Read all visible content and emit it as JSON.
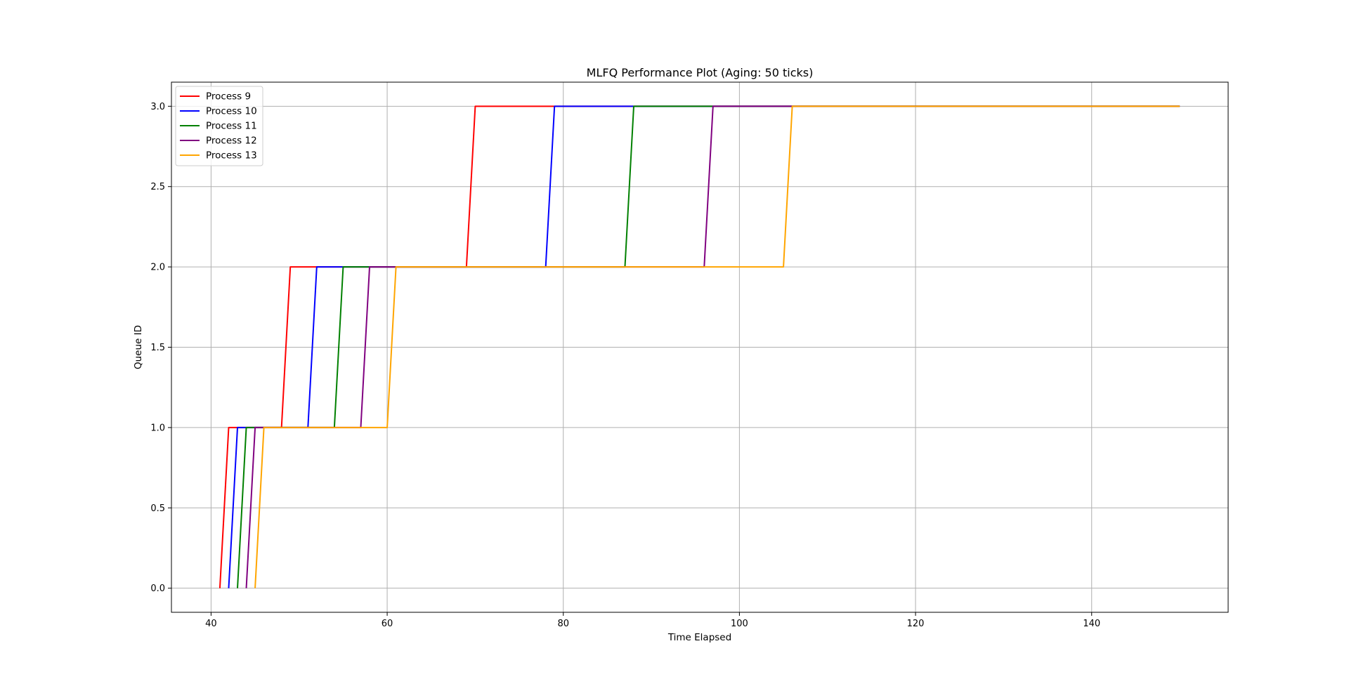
{
  "chart_data": {
    "type": "line",
    "title": "MLFQ Performance Plot (Aging: 50 ticks)",
    "xlabel": "Time Elapsed",
    "ylabel": "Queue ID",
    "xlim": [
      35.5,
      155.5
    ],
    "ylim": [
      -0.15,
      3.15
    ],
    "xticks": [
      40,
      60,
      80,
      100,
      120,
      140
    ],
    "yticks": [
      0.0,
      0.5,
      1.0,
      1.5,
      2.0,
      2.5,
      3.0
    ],
    "xtick_labels": [
      "40",
      "60",
      "80",
      "100",
      "120",
      "140"
    ],
    "ytick_labels": [
      "0.0",
      "0.5",
      "1.0",
      "1.5",
      "2.0",
      "2.5",
      "3.0"
    ],
    "grid": true,
    "legend_position": "upper-left",
    "series": [
      {
        "name": "Process 9",
        "color": "#ff0000",
        "x": [
          41,
          42,
          48,
          49,
          69,
          70,
          150
        ],
        "y": [
          0,
          1,
          1,
          2,
          2,
          3,
          3
        ]
      },
      {
        "name": "Process 10",
        "color": "#0000ff",
        "x": [
          42,
          43,
          51,
          52,
          78,
          79,
          150
        ],
        "y": [
          0,
          1,
          1,
          2,
          2,
          3,
          3
        ]
      },
      {
        "name": "Process 11",
        "color": "#008000",
        "x": [
          43,
          44,
          54,
          55,
          87,
          88,
          150
        ],
        "y": [
          0,
          1,
          1,
          2,
          2,
          3,
          3
        ]
      },
      {
        "name": "Process 12",
        "color": "#800080",
        "x": [
          44,
          45,
          57,
          58,
          96,
          97,
          150
        ],
        "y": [
          0,
          1,
          1,
          2,
          2,
          3,
          3
        ]
      },
      {
        "name": "Process 13",
        "color": "#ffa500",
        "x": [
          45,
          46,
          60,
          61,
          105,
          106,
          150
        ],
        "y": [
          0,
          1,
          1,
          2,
          2,
          3,
          3
        ]
      }
    ]
  }
}
